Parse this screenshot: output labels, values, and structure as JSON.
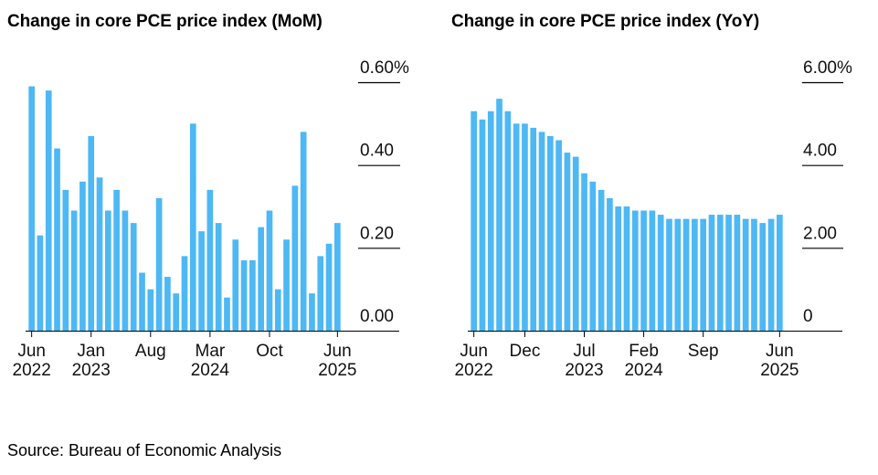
{
  "footer": {
    "source": "Source: Bureau of Economic Analysis"
  },
  "chart_data": [
    {
      "type": "bar",
      "title": "Change in core PCE price index (MoM)",
      "xlabel": "",
      "ylabel": "",
      "ylim": [
        0,
        0.6
      ],
      "y_ticks": [
        {
          "value": 0.6,
          "label": "0.60%"
        },
        {
          "value": 0.4,
          "label": "0.40"
        },
        {
          "value": 0.2,
          "label": "0.20"
        },
        {
          "value": 0.0,
          "label": "0.00"
        }
      ],
      "x_ticks": [
        {
          "index": 0,
          "line1": "Jun",
          "line2": "2022"
        },
        {
          "index": 7,
          "line1": "Jan",
          "line2": "2023"
        },
        {
          "index": 14,
          "line1": "Aug",
          "line2": ""
        },
        {
          "index": 21,
          "line1": "Mar",
          "line2": "2024"
        },
        {
          "index": 28,
          "line1": "Oct",
          "line2": ""
        },
        {
          "index": 36,
          "line1": "Jun",
          "line2": "2025"
        }
      ],
      "grid": false,
      "bar_color": "#4db8f4",
      "categories": [
        "Jun 2022",
        "Jul 2022",
        "Aug 2022",
        "Sep 2022",
        "Oct 2022",
        "Nov 2022",
        "Dec 2022",
        "Jan 2023",
        "Feb 2023",
        "Mar 2023",
        "Apr 2023",
        "May 2023",
        "Jun 2023",
        "Jul 2023",
        "Aug 2023",
        "Sep 2023",
        "Oct 2023",
        "Nov 2023",
        "Dec 2023",
        "Jan 2024",
        "Feb 2024",
        "Mar 2024",
        "Apr 2024",
        "May 2024",
        "Jun 2024",
        "Jul 2024",
        "Aug 2024",
        "Sep 2024",
        "Oct 2024",
        "Nov 2024",
        "Dec 2024",
        "Jan 2025",
        "Feb 2025",
        "Mar 2025",
        "Apr 2025",
        "May 2025",
        "Jun 2025"
      ],
      "values": [
        0.59,
        0.23,
        0.58,
        0.44,
        0.34,
        0.29,
        0.36,
        0.47,
        0.37,
        0.29,
        0.34,
        0.29,
        0.26,
        0.14,
        0.1,
        0.32,
        0.13,
        0.09,
        0.18,
        0.5,
        0.24,
        0.34,
        0.26,
        0.08,
        0.22,
        0.17,
        0.17,
        0.25,
        0.29,
        0.1,
        0.22,
        0.35,
        0.48,
        0.09,
        0.18,
        0.21,
        0.26
      ]
    },
    {
      "type": "bar",
      "title": "Change in core PCE price index (YoY)",
      "xlabel": "",
      "ylabel": "",
      "ylim": [
        0,
        6.0
      ],
      "y_ticks": [
        {
          "value": 6.0,
          "label": "6.00%"
        },
        {
          "value": 4.0,
          "label": "4.00"
        },
        {
          "value": 2.0,
          "label": "2.00"
        },
        {
          "value": 0.0,
          "label": "0"
        }
      ],
      "x_ticks": [
        {
          "index": 0,
          "line1": "Jun",
          "line2": "2022"
        },
        {
          "index": 6,
          "line1": "Dec",
          "line2": ""
        },
        {
          "index": 13,
          "line1": "Jul",
          "line2": "2023"
        },
        {
          "index": 20,
          "line1": "Feb",
          "line2": "2024"
        },
        {
          "index": 27,
          "line1": "Sep",
          "line2": ""
        },
        {
          "index": 36,
          "line1": "Jun",
          "line2": "2025"
        }
      ],
      "grid": false,
      "bar_color": "#4db8f4",
      "categories": [
        "Jun 2022",
        "Jul 2022",
        "Aug 2022",
        "Sep 2022",
        "Oct 2022",
        "Nov 2022",
        "Dec 2022",
        "Jan 2023",
        "Feb 2023",
        "Mar 2023",
        "Apr 2023",
        "May 2023",
        "Jun 2023",
        "Jul 2023",
        "Aug 2023",
        "Sep 2023",
        "Oct 2023",
        "Nov 2023",
        "Dec 2023",
        "Jan 2024",
        "Feb 2024",
        "Mar 2024",
        "Apr 2024",
        "May 2024",
        "Jun 2024",
        "Jul 2024",
        "Aug 2024",
        "Sep 2024",
        "Oct 2024",
        "Nov 2024",
        "Dec 2024",
        "Jan 2025",
        "Feb 2025",
        "Mar 2025",
        "Apr 2025",
        "May 2025",
        "Jun 2025"
      ],
      "values": [
        5.3,
        5.1,
        5.3,
        5.6,
        5.3,
        5.0,
        5.0,
        4.9,
        4.8,
        4.7,
        4.6,
        4.3,
        4.2,
        3.8,
        3.6,
        3.4,
        3.2,
        3.0,
        3.0,
        2.9,
        2.9,
        2.9,
        2.8,
        2.7,
        2.7,
        2.7,
        2.7,
        2.7,
        2.8,
        2.8,
        2.8,
        2.8,
        2.7,
        2.7,
        2.6,
        2.7,
        2.8
      ]
    }
  ]
}
